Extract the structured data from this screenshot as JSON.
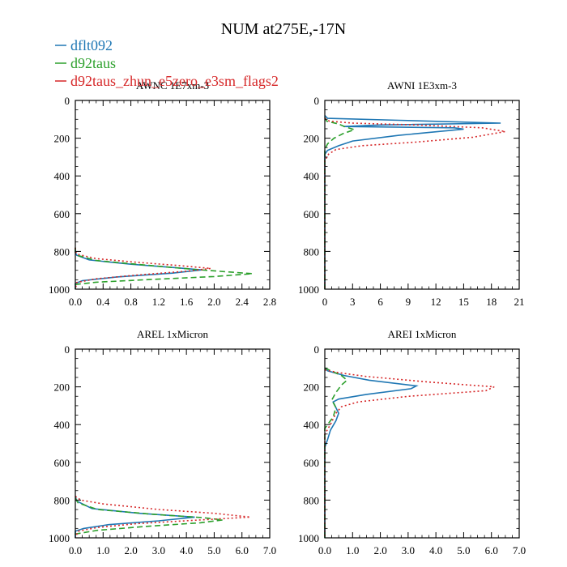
{
  "figure_title": "NUM at275E,-17N",
  "colors": {
    "dflt092": "#1f77b4",
    "d92taus": "#2ca02c",
    "zhun": "#d62728"
  },
  "chart_data": [
    {
      "type": "line",
      "title": "AWNC  1E7xm-3",
      "xlim": [
        0,
        2.8
      ],
      "ylim": [
        1000,
        0
      ],
      "xticks": [
        "0.0",
        "0.4",
        "0.8",
        "1.2",
        "1.6",
        "2.0",
        "2.4",
        "2.8"
      ],
      "yticks": [
        "0",
        "200",
        "400",
        "600",
        "800",
        "1000"
      ],
      "series": [
        {
          "name": "dflt092",
          "points": [
            [
              0,
              780
            ],
            [
              0,
              805
            ],
            [
              0.02,
              820
            ],
            [
              0.2,
              845
            ],
            [
              0.8,
              868
            ],
            [
              1.4,
              885
            ],
            [
              1.82,
              898
            ],
            [
              1.4,
              915
            ],
            [
              0.6,
              935
            ],
            [
              0.1,
              955
            ],
            [
              0,
              970
            ],
            [
              0,
              1000
            ]
          ]
        },
        {
          "name": "d92taus",
          "points": [
            [
              0,
              780
            ],
            [
              0,
              805
            ],
            [
              0.04,
              822
            ],
            [
              0.3,
              848
            ],
            [
              1.0,
              872
            ],
            [
              1.7,
              895
            ],
            [
              2.55,
              918
            ],
            [
              2.0,
              933
            ],
            [
              1.0,
              950
            ],
            [
              0.3,
              963
            ],
            [
              0,
              975
            ],
            [
              0,
              1000
            ]
          ]
        },
        {
          "name": "d92taus_zhun_e5zero_e3sm_flags2",
          "points": [
            [
              0,
              780
            ],
            [
              0,
              800
            ],
            [
              0.03,
              815
            ],
            [
              0.3,
              838
            ],
            [
              0.9,
              858
            ],
            [
              1.5,
              875
            ],
            [
              1.95,
              890
            ],
            [
              1.6,
              905
            ],
            [
              0.9,
              925
            ],
            [
              0.3,
              945
            ],
            [
              0.02,
              965
            ],
            [
              0,
              1000
            ]
          ]
        }
      ]
    },
    {
      "type": "line",
      "title": "AWNI  1E3xm-3",
      "xlim": [
        0,
        21
      ],
      "ylim": [
        1000,
        0
      ],
      "xticks": [
        "0",
        "3",
        "6",
        "9",
        "12",
        "15",
        "18",
        "21"
      ],
      "yticks": [
        "0",
        "200",
        "400",
        "600",
        "800",
        "1000"
      ],
      "series": [
        {
          "name": "dflt092",
          "points": [
            [
              0,
              80
            ],
            [
              0.3,
              95
            ],
            [
              8,
              105
            ],
            [
              19,
              120
            ],
            [
              6,
              130
            ],
            [
              2,
              138
            ],
            [
              14,
              145
            ],
            [
              15,
              152
            ],
            [
              8,
              185
            ],
            [
              3,
              215
            ],
            [
              1.5,
              240
            ],
            [
              0.3,
              265
            ],
            [
              0,
              285
            ],
            [
              0,
              1000
            ]
          ]
        },
        {
          "name": "d92taus",
          "points": [
            [
              0,
              90
            ],
            [
              0.2,
              110
            ],
            [
              1.5,
              125
            ],
            [
              2.2,
              140
            ],
            [
              3.2,
              155
            ],
            [
              2.0,
              175
            ],
            [
              1.0,
              200
            ],
            [
              0.3,
              230
            ],
            [
              0,
              260
            ],
            [
              0,
              1000
            ]
          ]
        },
        {
          "name": "d92taus_zhun_e5zero_e3sm_flags2",
          "points": [
            [
              0,
              95
            ],
            [
              0.5,
              110
            ],
            [
              3,
              120
            ],
            [
              10,
              130
            ],
            [
              17,
              145
            ],
            [
              19.5,
              165
            ],
            [
              16,
              195
            ],
            [
              10,
              220
            ],
            [
              4,
              240
            ],
            [
              1.2,
              260
            ],
            [
              0.4,
              285
            ],
            [
              0,
              320
            ],
            [
              0,
              1000
            ]
          ]
        }
      ]
    },
    {
      "type": "line",
      "title": "AREL  1xMicron",
      "xlim": [
        0,
        7.0
      ],
      "ylim": [
        1000,
        0
      ],
      "xticks": [
        "0.0",
        "1.0",
        "2.0",
        "3.0",
        "4.0",
        "5.0",
        "6.0",
        "7.0"
      ],
      "yticks": [
        "0",
        "200",
        "400",
        "600",
        "800",
        "1000"
      ],
      "series": [
        {
          "name": "dflt092",
          "points": [
            [
              0,
              780
            ],
            [
              0.05,
              805
            ],
            [
              0.6,
              845
            ],
            [
              2.3,
              870
            ],
            [
              4.3,
              890
            ],
            [
              3.0,
              910
            ],
            [
              1.2,
              930
            ],
            [
              0.3,
              950
            ],
            [
              0,
              965
            ],
            [
              0,
              1000
            ]
          ]
        },
        {
          "name": "d92taus",
          "points": [
            [
              0,
              790
            ],
            [
              0.1,
              815
            ],
            [
              0.8,
              850
            ],
            [
              2.8,
              875
            ],
            [
              4.6,
              893
            ],
            [
              5.3,
              905
            ],
            [
              4.5,
              920
            ],
            [
              2.5,
              940
            ],
            [
              0.8,
              960
            ],
            [
              0,
              980
            ],
            [
              0,
              1000
            ]
          ]
        },
        {
          "name": "d92taus_zhun_e5zero_e3sm_flags2",
          "points": [
            [
              0,
              780
            ],
            [
              0.2,
              800
            ],
            [
              1.0,
              820
            ],
            [
              3.0,
              850
            ],
            [
              5.0,
              870
            ],
            [
              6.3,
              890
            ],
            [
              4.5,
              905
            ],
            [
              2.2,
              925
            ],
            [
              0.8,
              945
            ],
            [
              0.1,
              965
            ],
            [
              0,
              1000
            ]
          ]
        }
      ]
    },
    {
      "type": "line",
      "title": "AREI  1xMicron",
      "xlim": [
        0,
        7.0
      ],
      "ylim": [
        1000,
        0
      ],
      "xticks": [
        "0.0",
        "1.0",
        "2.0",
        "3.0",
        "4.0",
        "5.0",
        "6.0",
        "7.0"
      ],
      "yticks": [
        "0",
        "200",
        "400",
        "600",
        "800",
        "1000"
      ],
      "series": [
        {
          "name": "dflt092",
          "points": [
            [
              0,
              100
            ],
            [
              0.1,
              115
            ],
            [
              0.7,
              140
            ],
            [
              1.6,
              165
            ],
            [
              3.3,
              195
            ],
            [
              3.1,
              210
            ],
            [
              1.5,
              240
            ],
            [
              0.5,
              265
            ],
            [
              0.3,
              280
            ],
            [
              0.5,
              340
            ],
            [
              0.4,
              380
            ],
            [
              0.2,
              430
            ],
            [
              0.1,
              480
            ],
            [
              0,
              520
            ],
            [
              0,
              1000
            ]
          ]
        },
        {
          "name": "d92taus",
          "points": [
            [
              0,
              100
            ],
            [
              0.3,
              120
            ],
            [
              0.6,
              140
            ],
            [
              0.8,
              165
            ],
            [
              0.6,
              190
            ],
            [
              0.4,
              230
            ],
            [
              0.25,
              270
            ],
            [
              0.4,
              310
            ],
            [
              0.3,
              360
            ],
            [
              0,
              420
            ],
            [
              0,
              1000
            ]
          ]
        },
        {
          "name": "d92taus_zhun_e5zero_e3sm_flags2",
          "points": [
            [
              0,
              110
            ],
            [
              0.5,
              125
            ],
            [
              1.5,
              145
            ],
            [
              3.8,
              175
            ],
            [
              6.1,
              200
            ],
            [
              5.8,
              220
            ],
            [
              3.0,
              250
            ],
            [
              1.2,
              280
            ],
            [
              0.6,
              305
            ],
            [
              0.4,
              340
            ],
            [
              0.2,
              400
            ],
            [
              0,
              450
            ],
            [
              0,
              1000
            ]
          ]
        }
      ]
    }
  ],
  "legend": [
    {
      "label": "dflt092",
      "series": "dflt092"
    },
    {
      "label": "d92taus",
      "series": "d92taus"
    },
    {
      "label": "d92taus_zhun_e5zero_e3sm_flags2",
      "series": "zhun"
    }
  ]
}
